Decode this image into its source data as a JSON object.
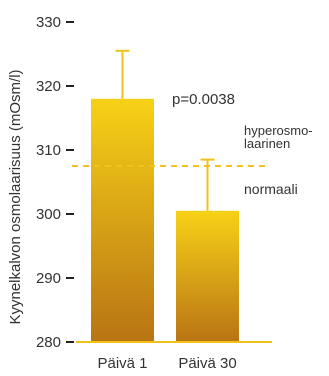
{
  "chart_data": {
    "type": "bar",
    "title": "",
    "xlabel": "",
    "ylabel": "Kyynelkalvon osmolaarisuus (mOsm/l)",
    "ylim": [
      280,
      330
    ],
    "yticks": [
      280,
      290,
      300,
      310,
      320,
      330
    ],
    "categories": [
      "Päivä 1",
      "Päivä 30"
    ],
    "values": [
      318,
      300.5
    ],
    "error_upper": [
      325.5,
      308.5
    ],
    "grid": false,
    "annotations": {
      "p_value": "p=0.0038",
      "threshold_value": 307.5,
      "threshold_label_above_line1": "hyperosmo-",
      "threshold_label_above_line2": "laarinen",
      "threshold_label_below": "normaali"
    },
    "colors": {
      "bar_top": "#f7d117",
      "bar_bottom": "#b87414",
      "error_bar": "#f2c21b",
      "threshold_line": "#f2c21b",
      "axis_line": "#f2c21b",
      "text": "#333333"
    }
  }
}
